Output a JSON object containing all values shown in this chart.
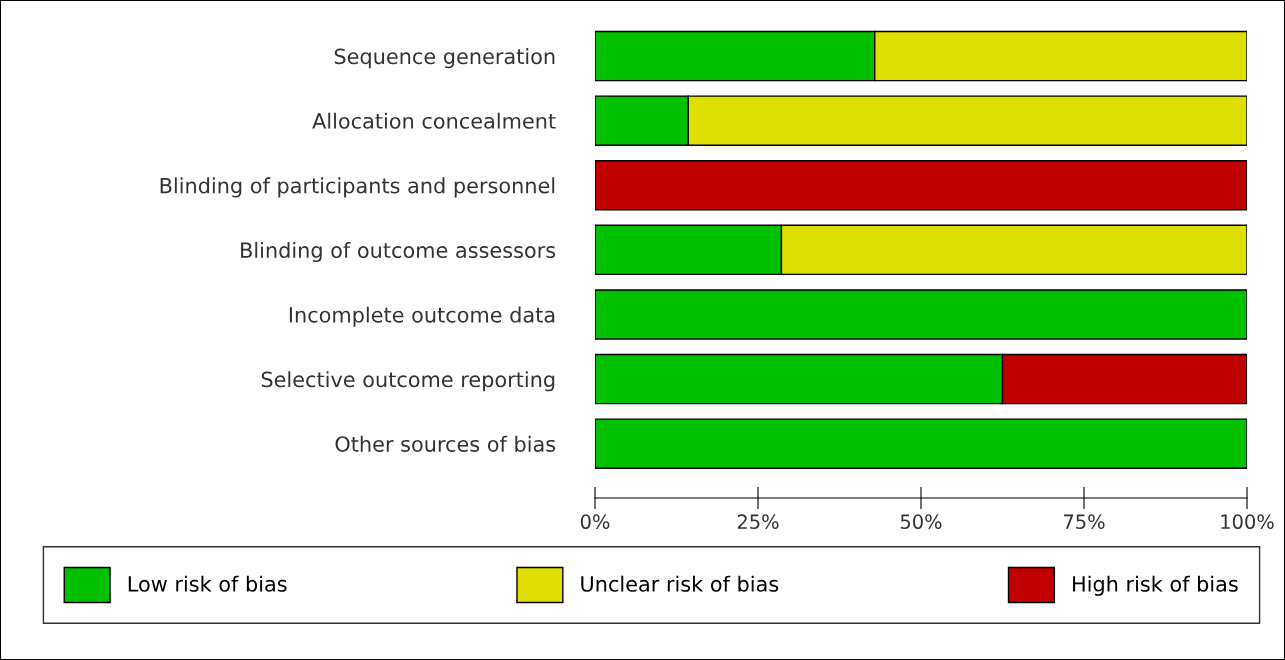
{
  "chart_data": {
    "type": "bar",
    "orientation": "horizontal",
    "stacked": true,
    "categories": [
      "Sequence generation",
      "Allocation concealment",
      "Blinding of participants and personnel",
      "Blinding of outcome assessors",
      "Incomplete outcome data",
      "Selective outcome reporting",
      "Other sources of bias"
    ],
    "series": [
      {
        "name": "Low risk of bias",
        "color": "#00c000",
        "values": [
          42.9,
          14.3,
          null,
          28.6,
          100,
          62.5,
          100
        ]
      },
      {
        "name": "Unclear risk of bias",
        "color": "#e0e000",
        "values": [
          57.1,
          85.7,
          null,
          71.4,
          null,
          null,
          null
        ]
      },
      {
        "name": "High risk of bias",
        "color": "#c00000",
        "values": [
          null,
          null,
          100,
          null,
          null,
          37.5,
          null
        ]
      }
    ],
    "xlim": [
      0,
      100
    ],
    "xticks": [
      {
        "value": 0,
        "label": "0%"
      },
      {
        "value": 25,
        "label": "25%"
      },
      {
        "value": 50,
        "label": "50%"
      },
      {
        "value": 75,
        "label": "75%"
      },
      {
        "value": 100,
        "label": "100%"
      }
    ],
    "legend": "bottom"
  }
}
